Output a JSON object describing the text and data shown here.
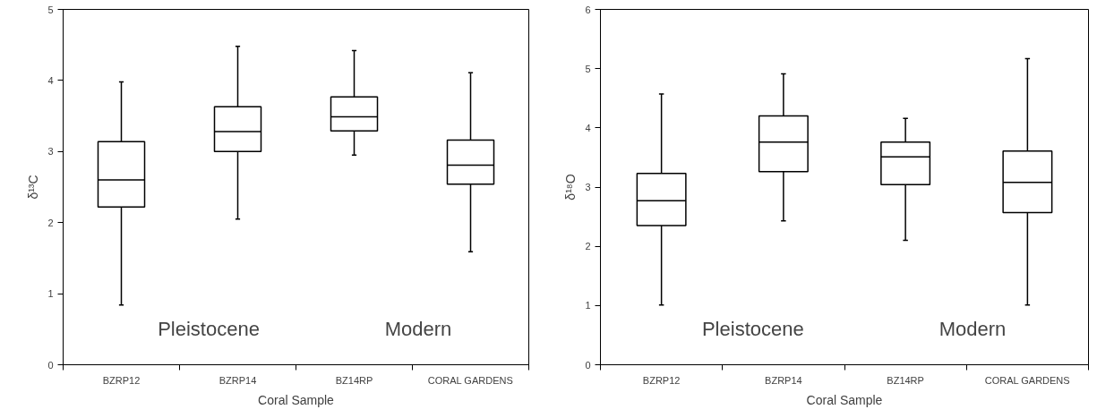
{
  "chart_data": [
    {
      "type": "box",
      "xlabel": "Coral Sample",
      "ylabel": "δ¹³C",
      "categories": [
        "BZRP12",
        "BZRP14",
        "BZ14RP",
        "CORAL GARDENS"
      ],
      "boxes": [
        {
          "low": 0.84,
          "q1": 2.22,
          "median": 2.6,
          "q3": 3.14,
          "high": 3.98
        },
        {
          "low": 2.05,
          "q1": 3.0,
          "median": 3.28,
          "q3": 3.63,
          "high": 4.48
        },
        {
          "low": 2.95,
          "q1": 3.29,
          "median": 3.49,
          "q3": 3.77,
          "high": 4.42
        },
        {
          "low": 1.59,
          "q1": 2.54,
          "median": 2.81,
          "q3": 3.16,
          "high": 4.11
        }
      ],
      "ylim": [
        0,
        5
      ],
      "yticks": [
        0,
        1,
        2,
        3,
        4,
        5
      ],
      "grid": false,
      "annotations": [
        "Pleistocene",
        "Modern"
      ]
    },
    {
      "type": "box",
      "xlabel": "Coral Sample",
      "ylabel": "δ¹⁸O",
      "categories": [
        "BZRP12",
        "BZRP14",
        "BZ14RP",
        "CORAL GARDENS"
      ],
      "boxes": [
        {
          "low": 1.01,
          "q1": 2.35,
          "median": 2.77,
          "q3": 3.23,
          "high": 4.57
        },
        {
          "low": 2.43,
          "q1": 3.26,
          "median": 3.76,
          "q3": 4.2,
          "high": 4.91
        },
        {
          "low": 2.1,
          "q1": 3.04,
          "median": 3.51,
          "q3": 3.76,
          "high": 4.16
        },
        {
          "low": 1.01,
          "q1": 2.57,
          "median": 3.08,
          "q3": 3.61,
          "high": 5.17
        }
      ],
      "ylim": [
        0,
        6
      ],
      "yticks": [
        0,
        1,
        2,
        3,
        4,
        5,
        6
      ],
      "grid": false,
      "annotations": [
        "Pleistocene",
        "Modern"
      ]
    }
  ]
}
